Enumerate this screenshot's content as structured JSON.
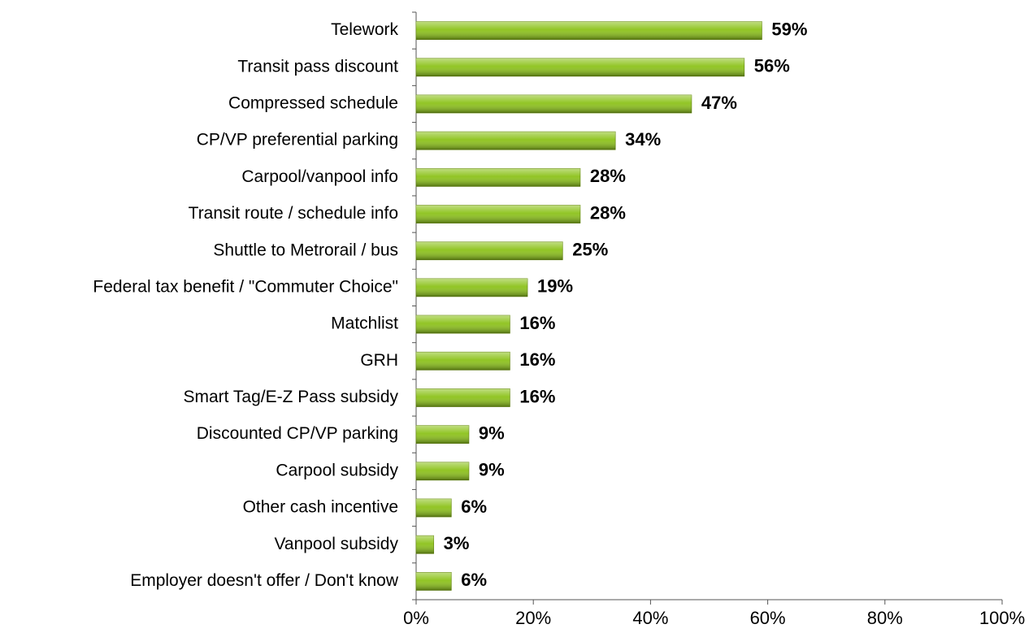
{
  "chart_data": {
    "type": "bar",
    "orientation": "horizontal",
    "categories": [
      "Telework",
      "Transit pass discount",
      "Compressed schedule",
      "CP/VP preferential parking",
      "Carpool/vanpool info",
      "Transit route / schedule info",
      "Shuttle to Metrorail / bus",
      "Federal tax benefit / \"Commuter Choice\"",
      "Matchlist",
      "GRH",
      "Smart Tag/E-Z Pass subsidy",
      "Discounted CP/VP parking",
      "Carpool subsidy",
      "Other cash incentive",
      "Vanpool subsidy",
      "Employer doesn't offer / Don't know"
    ],
    "values": [
      59,
      56,
      47,
      34,
      28,
      28,
      25,
      19,
      16,
      16,
      16,
      9,
      9,
      6,
      3,
      6
    ],
    "value_labels": [
      "59%",
      "56%",
      "47%",
      "34%",
      "28%",
      "28%",
      "25%",
      "19%",
      "16%",
      "16%",
      "16%",
      "9%",
      "9%",
      "6%",
      "3%",
      "6%"
    ],
    "color": "#8cc21a",
    "xlim": [
      0,
      100
    ],
    "xticks": [
      {
        "value": 0,
        "label": "0%"
      },
      {
        "value": 20,
        "label": "20%"
      },
      {
        "value": 40,
        "label": "40%"
      },
      {
        "value": 60,
        "label": "60%"
      },
      {
        "value": 80,
        "label": "80%"
      },
      {
        "value": 100,
        "label": "100%"
      }
    ]
  }
}
